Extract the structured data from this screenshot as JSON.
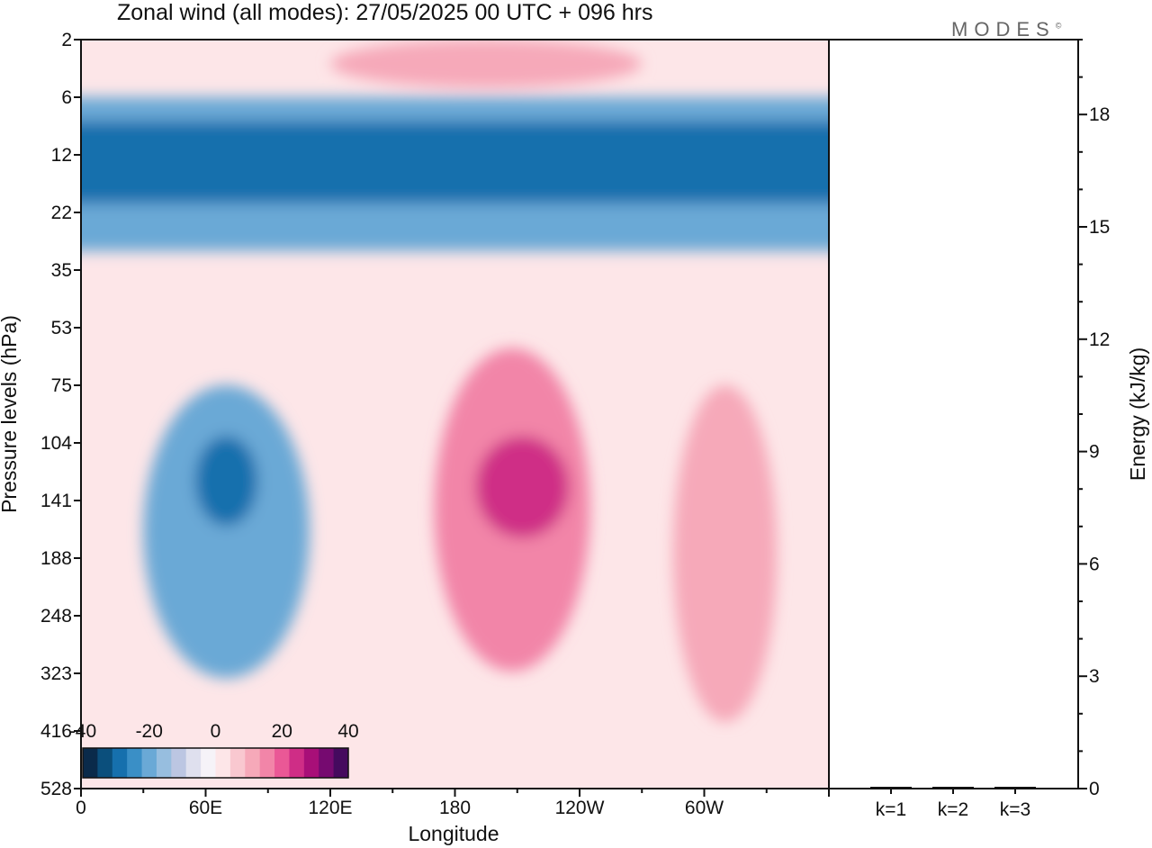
{
  "chart_data": {
    "type": "heatmap",
    "title": "Zonal wind (all modes):  27/05/2025  00 UTC  + 096 hrs",
    "brand": "MODES",
    "brand_mark": "©",
    "xlabel": "Longitude",
    "ylabel": "Pressure levels (hPa)",
    "x_ticks": [
      "0",
      "60E",
      "120E",
      "180",
      "120W",
      "60W"
    ],
    "y_ticks": [
      "2",
      "6",
      "12",
      "22",
      "35",
      "53",
      "75",
      "104",
      "141",
      "188",
      "248",
      "323",
      "416",
      "528"
    ],
    "colorbar": {
      "labels": [
        "-40",
        "-20",
        "0",
        "20",
        "40"
      ],
      "colors": [
        "#0a2a4a",
        "#0b4f7c",
        "#1670ad",
        "#3a8fc6",
        "#6aa9d6",
        "#97bedf",
        "#bcc6e2",
        "#dfe0ee",
        "#f6f3f8",
        "#fde6e8",
        "#f9c8d0",
        "#f6a9b9",
        "#f285a8",
        "#ea5896",
        "#cf2d86",
        "#a80f78",
        "#760a70",
        "#450a5e"
      ],
      "range": [
        -45,
        45
      ]
    },
    "contour_fields": [
      {
        "name": "stratospheric_easterlies",
        "lon": [
          0,
          360
        ],
        "p": [
          6,
          30
        ],
        "value": -25
      },
      {
        "name": "stratospheric_easterlies_core",
        "lon": [
          0,
          360
        ],
        "p": [
          8,
          20
        ],
        "value": -32
      },
      {
        "name": "upper_westerlies",
        "lon": [
          120,
          270
        ],
        "p": [
          2,
          5
        ],
        "value": 12
      },
      {
        "name": "tropospheric_easterly_cell",
        "lon": [
          30,
          110
        ],
        "p": [
          75,
          330
        ],
        "value": -22
      },
      {
        "name": "easterly_cell_core",
        "lon": [
          55,
          85
        ],
        "p": [
          100,
          160
        ],
        "value": -35
      },
      {
        "name": "westerly_cell_central",
        "lon": [
          170,
          245
        ],
        "p": [
          60,
          320
        ],
        "value": 16
      },
      {
        "name": "westerly_cell_central_core",
        "lon": [
          190,
          235
        ],
        "p": [
          100,
          170
        ],
        "value": 25
      },
      {
        "name": "westerly_cell_east",
        "lon": [
          285,
          335
        ],
        "p": [
          75,
          400
        ],
        "value": 12
      }
    ],
    "energy_panel": {
      "ylabel": "Energy (kJ/kg)",
      "y_ticks": [
        "0",
        "3",
        "6",
        "9",
        "12",
        "15",
        "18"
      ],
      "ylim": [
        0,
        20
      ],
      "categories": [
        "k=1",
        "k=2",
        "k=3"
      ],
      "values": [
        0.04,
        0.02,
        0.02
      ]
    }
  }
}
